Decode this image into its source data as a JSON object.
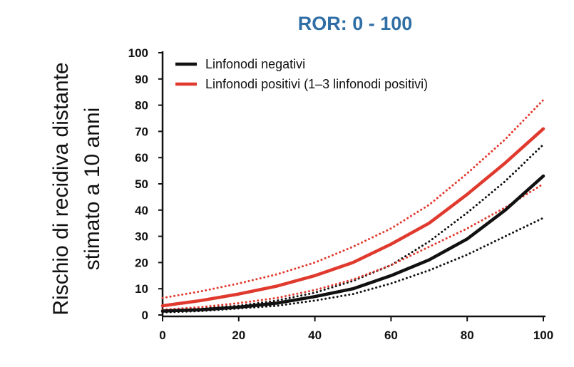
{
  "chart_data": {
    "type": "line",
    "title": "ROR: 0 - 100",
    "ylabel_lines": [
      "Rischio di recidiva distante",
      "stimato a 10 anni"
    ],
    "xlabel": "",
    "xlim": [
      0,
      100
    ],
    "ylim": [
      0,
      100
    ],
    "xticks": [
      "0",
      "20",
      "40",
      "60",
      "80",
      "100"
    ],
    "yticks": [
      "0",
      "10",
      "20",
      "30",
      "40",
      "50",
      "60",
      "70",
      "80",
      "90",
      "100"
    ],
    "legend_position": "top-left",
    "grid": false,
    "series": [
      {
        "name": "Linfonodi negativi",
        "color": "#111111",
        "style": "solid",
        "x": [
          0,
          10,
          20,
          30,
          40,
          50,
          60,
          70,
          80,
          90,
          100
        ],
        "y": [
          1.5,
          2,
          3,
          4.5,
          7,
          10,
          15,
          21,
          29,
          40,
          53
        ]
      },
      {
        "name": "Linfonodi positivi (1–3 linfonodi positivi)",
        "color": "#e03a2e",
        "style": "solid",
        "x": [
          0,
          10,
          20,
          30,
          40,
          50,
          60,
          70,
          80,
          90,
          100
        ],
        "y": [
          3.5,
          5.5,
          8,
          11,
          15,
          20,
          27,
          35,
          46,
          58,
          71
        ]
      },
      {
        "name": "",
        "color": "#111111",
        "style": "dotted",
        "x": [
          0,
          10,
          20,
          30,
          40,
          50,
          60,
          70,
          80,
          90,
          100
        ],
        "y": [
          2,
          2.5,
          3.5,
          5.5,
          8.5,
          13,
          19,
          28,
          39,
          51,
          65
        ]
      },
      {
        "name": "",
        "color": "#111111",
        "style": "dotted",
        "x": [
          0,
          10,
          20,
          30,
          40,
          50,
          60,
          70,
          80,
          90,
          100
        ],
        "y": [
          1,
          1.5,
          2.5,
          3.5,
          5.5,
          8,
          12,
          17,
          23,
          30,
          37
        ]
      },
      {
        "name": "",
        "color": "#e03a2e",
        "style": "dotted",
        "x": [
          0,
          10,
          20,
          30,
          40,
          50,
          60,
          70,
          80,
          90,
          100
        ],
        "y": [
          6.5,
          9,
          12,
          15.5,
          20,
          26,
          33,
          42,
          54,
          67,
          82
        ]
      },
      {
        "name": "",
        "color": "#e03a2e",
        "style": "dotted",
        "x": [
          0,
          10,
          20,
          30,
          40,
          50,
          60,
          70,
          80,
          90,
          100
        ],
        "y": [
          2,
          3,
          4.5,
          6.5,
          9.5,
          13.5,
          19,
          26,
          33,
          41,
          50
        ]
      }
    ]
  }
}
